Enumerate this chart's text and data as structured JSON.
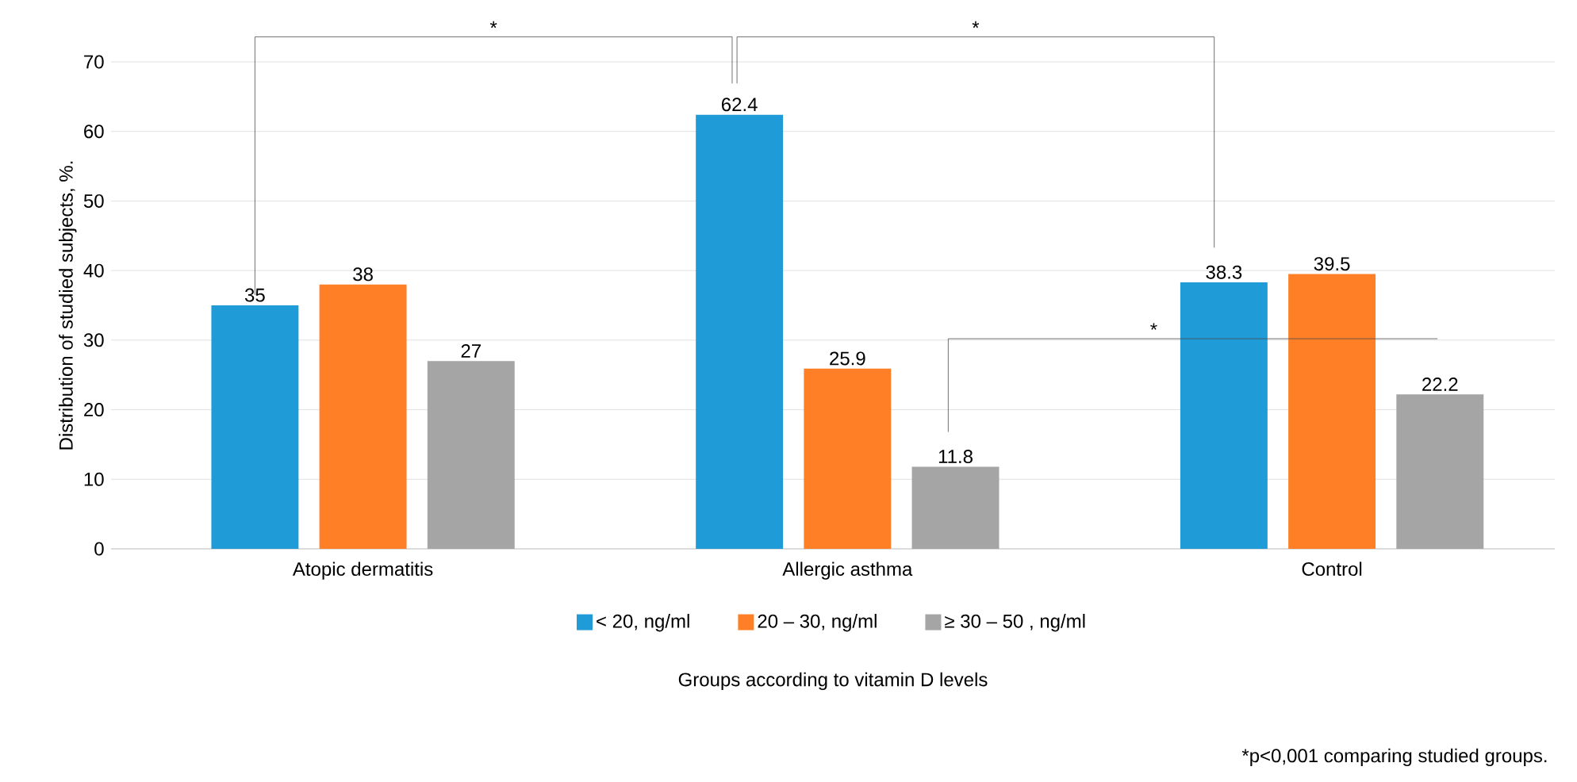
{
  "chart_data": {
    "type": "bar",
    "ylabel": "Distribution of studied subjects, %.",
    "xlabel": "Groups according to vitamin D levels",
    "categories": [
      "Atopic dermatitis",
      "Allergic asthma",
      "Control"
    ],
    "series": [
      {
        "name": "< 20, ng/ml",
        "color": "#1f9bd7",
        "values": [
          35,
          62.4,
          38.3
        ]
      },
      {
        "name": "20 – 30, ng/ml",
        "color": "#ff7f27",
        "values": [
          38,
          25.9,
          39.5
        ]
      },
      {
        "name": "≥ 30 – 50 , ng/ml",
        "color": "#a5a5a5",
        "values": [
          27,
          11.8,
          22.2
        ]
      }
    ],
    "ylim": [
      0,
      70
    ],
    "yticks": [
      0,
      10,
      20,
      30,
      40,
      50,
      60,
      70
    ],
    "grid": "y",
    "legend": "bottom",
    "data_labels": true,
    "annotations": [
      "*",
      "*",
      "*",
      "*p<0,001 comparing studied groups."
    ]
  }
}
